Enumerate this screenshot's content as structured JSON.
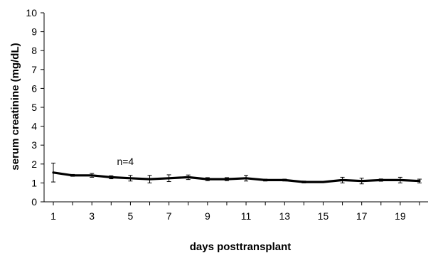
{
  "chart_data": {
    "type": "line",
    "xlabel": "days posttransplant",
    "ylabel": "serum creatinine (mg/dL)",
    "xlim": [
      1,
      20
    ],
    "ylim": [
      0,
      10
    ],
    "x_ticks": [
      1,
      3,
      5,
      7,
      9,
      11,
      13,
      15,
      17,
      19
    ],
    "y_ticks": [
      0,
      1,
      2,
      3,
      4,
      5,
      6,
      7,
      8,
      9,
      10
    ],
    "grid": false,
    "series": [
      {
        "x": [
          1,
          2,
          3,
          4,
          5,
          6,
          7,
          8,
          9,
          10,
          11,
          12,
          13,
          14,
          15,
          16,
          17,
          18,
          19,
          20
        ],
        "values": [
          1.55,
          1.4,
          1.4,
          1.3,
          1.25,
          1.2,
          1.25,
          1.3,
          1.2,
          1.2,
          1.25,
          1.15,
          1.15,
          1.05,
          1.05,
          1.15,
          1.1,
          1.15,
          1.15,
          1.1
        ],
        "error": [
          0.5,
          0.05,
          0.1,
          0.08,
          0.15,
          0.2,
          0.18,
          0.12,
          0.08,
          0.08,
          0.15,
          0.05,
          0.05,
          0.05,
          0.03,
          0.15,
          0.15,
          0.06,
          0.15,
          0.1
        ],
        "color": "#000000"
      }
    ],
    "annotations": [
      {
        "text": "n=4",
        "x": 4.3,
        "y": 1.95
      }
    ]
  }
}
